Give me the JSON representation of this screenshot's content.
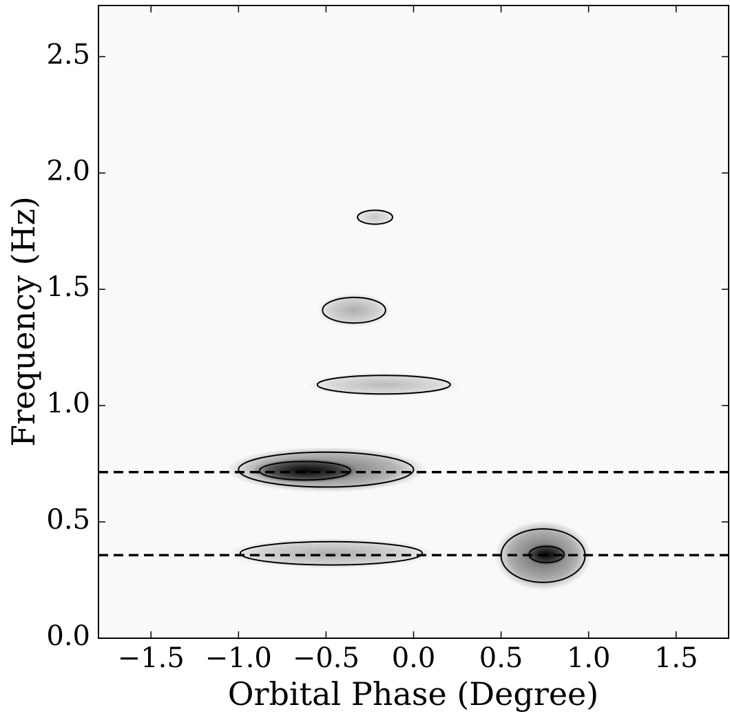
{
  "chart_data": {
    "type": "heatmap",
    "xlabel": "Orbital Phase (Degree)",
    "ylabel": "Frequency (Hz)",
    "xlim": [
      -1.8,
      1.8
    ],
    "ylim": [
      0,
      2.72
    ],
    "xticks": [
      {
        "value": -1.5,
        "label": "−1.5"
      },
      {
        "value": -1.0,
        "label": "−1.0"
      },
      {
        "value": -0.5,
        "label": "−0.5"
      },
      {
        "value": 0,
        "label": "0.0"
      },
      {
        "value": 0.5,
        "label": "0.5"
      },
      {
        "value": 1,
        "label": "1.0"
      },
      {
        "value": 1.5,
        "label": "1.5"
      }
    ],
    "yticks": [
      {
        "value": 0,
        "label": "0.0"
      },
      {
        "value": 0.5,
        "label": "0.5"
      },
      {
        "value": 1,
        "label": "1.0"
      },
      {
        "value": 1.5,
        "label": "1.5"
      },
      {
        "value": 2,
        "label": "2.0"
      },
      {
        "value": 2.5,
        "label": "2.5"
      }
    ],
    "hlines": [
      0.714,
      0.357
    ],
    "features": [
      {
        "x": -0.5,
        "y": 0.725,
        "rx": 0.5,
        "ry": 0.075,
        "intensity": 0.55
      },
      {
        "x": -0.62,
        "y": 0.72,
        "rx": 0.26,
        "ry": 0.04,
        "intensity": 0.95
      },
      {
        "x": -0.47,
        "y": 0.365,
        "rx": 0.52,
        "ry": 0.05,
        "intensity": 0.3
      },
      {
        "x": 0.74,
        "y": 0.355,
        "rx": 0.24,
        "ry": 0.115,
        "intensity": 0.6
      },
      {
        "x": 0.76,
        "y": 0.36,
        "rx": 0.1,
        "ry": 0.035,
        "intensity": 0.95
      },
      {
        "x": -0.34,
        "y": 1.41,
        "rx": 0.18,
        "ry": 0.055,
        "intensity": 0.3
      },
      {
        "x": -0.17,
        "y": 1.09,
        "rx": 0.38,
        "ry": 0.04,
        "intensity": 0.25
      },
      {
        "x": -0.22,
        "y": 1.81,
        "rx": 0.1,
        "ry": 0.03,
        "intensity": 0.2
      }
    ]
  }
}
